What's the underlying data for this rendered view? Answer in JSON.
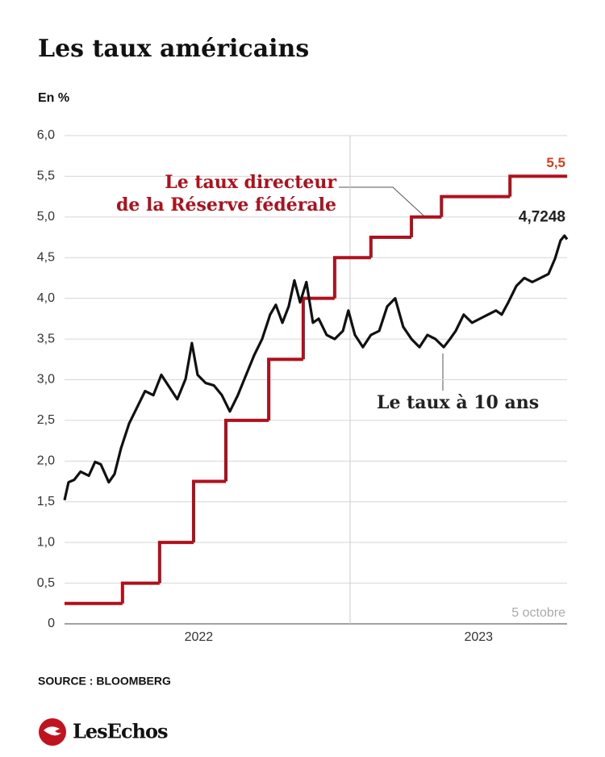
{
  "chart_data": {
    "type": "line",
    "title": "Les taux américains",
    "y_label": "En %",
    "source": "SOURCE : BLOOMBERG",
    "brand": "LesEchos",
    "date_note": "5 octobre",
    "xlim": [
      2022.0,
      2023.76
    ],
    "xticks": [
      {
        "value": 2022.47,
        "label": "2022"
      },
      {
        "value": 2023.45,
        "label": "2023"
      }
    ],
    "year_line": 2023.0,
    "ylim": [
      0,
      6
    ],
    "yticks": [
      {
        "value": 0,
        "label": "0"
      },
      {
        "value": 0.5,
        "label": "0,5"
      },
      {
        "value": 1,
        "label": "1,0"
      },
      {
        "value": 1.5,
        "label": "1,5"
      },
      {
        "value": 2,
        "label": "2,0"
      },
      {
        "value": 2.5,
        "label": "2,5"
      },
      {
        "value": 3,
        "label": "3,0"
      },
      {
        "value": 3.5,
        "label": "3,5"
      },
      {
        "value": 4,
        "label": "4,0"
      },
      {
        "value": 4.5,
        "label": "4,5"
      },
      {
        "value": 5,
        "label": "5,0"
      },
      {
        "value": 5.5,
        "label": "5,5"
      },
      {
        "value": 6,
        "label": "6,0"
      }
    ],
    "grid": true,
    "series": [
      {
        "name": [
          "Le taux directeur",
          "de la Réserve fédérale"
        ],
        "color": "#b0101c",
        "label_color": "#d4401c",
        "step": true,
        "x": [
          2022.0,
          2022.203,
          2022.333,
          2022.452,
          2022.565,
          2022.715,
          2022.836,
          2022.946,
          2023.073,
          2023.215,
          2023.32,
          2023.56
        ],
        "values": [
          0.25,
          0.5,
          1.0,
          1.75,
          2.5,
          3.25,
          4.0,
          4.5,
          4.75,
          5.0,
          5.25,
          5.5
        ],
        "end_label": "5,5"
      },
      {
        "name": [
          "Le taux à 10 ans"
        ],
        "color": "#111111",
        "label_color": "#222222",
        "step": false,
        "x": [
          2022.0,
          2022.014,
          2022.034,
          2022.056,
          2022.085,
          2022.107,
          2022.127,
          2022.155,
          2022.175,
          2022.198,
          2022.226,
          2022.254,
          2022.282,
          2022.311,
          2022.339,
          2022.367,
          2022.395,
          2022.424,
          2022.446,
          2022.466,
          2022.494,
          2022.523,
          2022.551,
          2022.579,
          2022.607,
          2022.636,
          2022.664,
          2022.692,
          2022.72,
          2022.74,
          2022.763,
          2022.785,
          2022.805,
          2022.825,
          2022.847,
          2022.87,
          2022.89,
          2022.918,
          2022.946,
          2022.975,
          2022.994,
          2023.017,
          2023.045,
          2023.073,
          2023.102,
          2023.13,
          2023.158,
          2023.186,
          2023.215,
          2023.243,
          2023.271,
          2023.299,
          2023.328,
          2023.35,
          2023.37,
          2023.398,
          2023.427,
          2023.455,
          2023.483,
          2023.511,
          2023.531,
          2023.554,
          2023.582,
          2023.61,
          2023.638,
          2023.667,
          2023.695,
          2023.718,
          2023.737,
          2023.751,
          2023.76
        ],
        "values": [
          1.52,
          1.74,
          1.77,
          1.87,
          1.82,
          1.99,
          1.96,
          1.74,
          1.84,
          2.16,
          2.46,
          2.66,
          2.86,
          2.81,
          3.06,
          2.91,
          2.76,
          3.01,
          3.45,
          3.06,
          2.96,
          2.93,
          2.81,
          2.61,
          2.81,
          3.06,
          3.3,
          3.5,
          3.8,
          3.92,
          3.7,
          3.9,
          4.22,
          3.95,
          4.2,
          3.7,
          3.75,
          3.55,
          3.5,
          3.6,
          3.85,
          3.55,
          3.4,
          3.55,
          3.6,
          3.9,
          4.0,
          3.65,
          3.5,
          3.4,
          3.55,
          3.5,
          3.4,
          3.5,
          3.6,
          3.8,
          3.7,
          3.75,
          3.8,
          3.85,
          3.8,
          3.95,
          4.15,
          4.25,
          4.2,
          4.25,
          4.3,
          4.49,
          4.71,
          4.77,
          4.7248
        ],
        "end_label": "4,7248"
      }
    ]
  }
}
